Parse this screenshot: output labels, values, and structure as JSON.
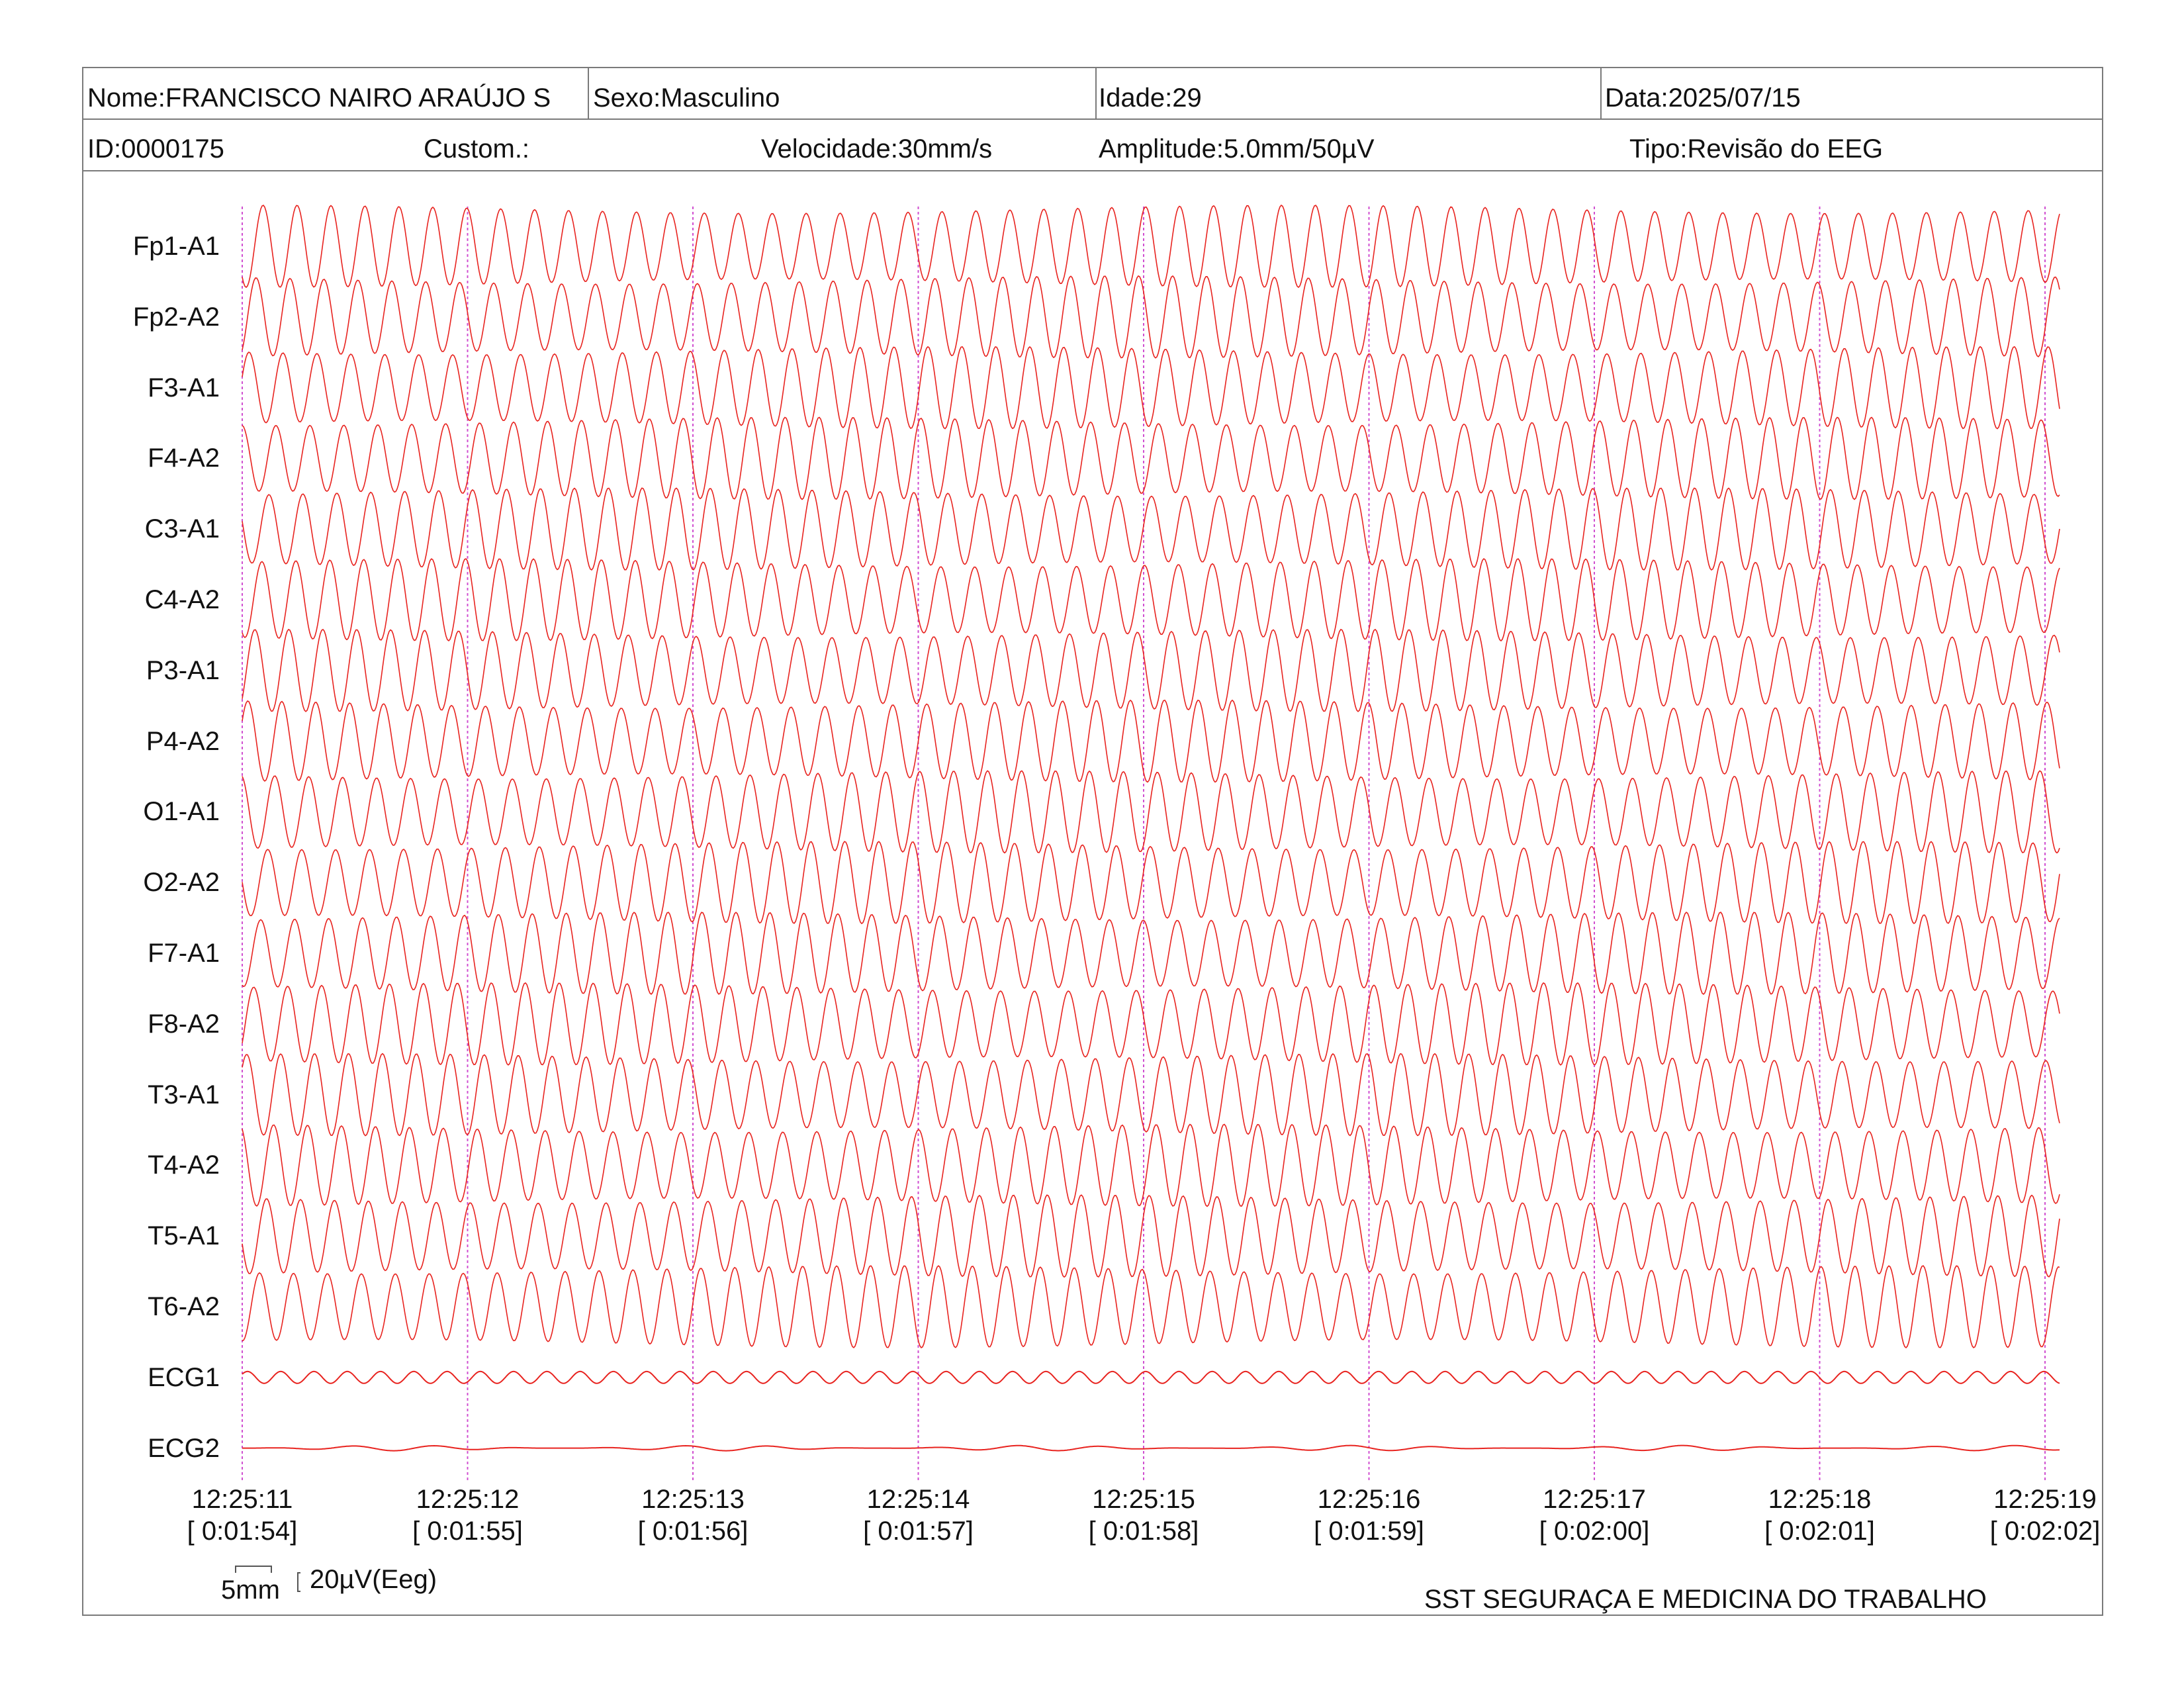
{
  "header": {
    "nome": "Nome:FRANCISCO NAIRO ARAÚJO S",
    "sexo": "Sexo:Masculino",
    "idade": "Idade:29",
    "data": "Data:2025/07/15",
    "id": "ID:0000175",
    "custom": "Custom.:",
    "velocidade": "Velocidade:30mm/s",
    "amplitude": "Amplitude:5.0mm/50µV",
    "tipo": "Tipo:Revisão do EEG"
  },
  "channels": [
    {
      "label": "Fp1-A1"
    },
    {
      "label": "Fp2-A2"
    },
    {
      "label": "F3-A1"
    },
    {
      "label": "F4-A2"
    },
    {
      "label": "C3-A1"
    },
    {
      "label": "C4-A2"
    },
    {
      "label": "P3-A1"
    },
    {
      "label": "P4-A2"
    },
    {
      "label": "O1-A1"
    },
    {
      "label": "O2-A2"
    },
    {
      "label": "F7-A1"
    },
    {
      "label": "F8-A2"
    },
    {
      "label": "T3-A1"
    },
    {
      "label": "T4-A2"
    },
    {
      "label": "T5-A1"
    },
    {
      "label": "T6-A2"
    },
    {
      "label": "ECG1"
    },
    {
      "label": "ECG2"
    }
  ],
  "time_axis": [
    {
      "clock": "12:25:11",
      "elapsed": "[ 0:01:54]"
    },
    {
      "clock": "12:25:12",
      "elapsed": "[ 0:01:55]"
    },
    {
      "clock": "12:25:13",
      "elapsed": "[ 0:01:56]"
    },
    {
      "clock": "12:25:14",
      "elapsed": "[ 0:01:57]"
    },
    {
      "clock": "12:25:15",
      "elapsed": "[ 0:01:58]"
    },
    {
      "clock": "12:25:16",
      "elapsed": "[ 0:01:59]"
    },
    {
      "clock": "12:25:17",
      "elapsed": "[ 0:02:00]"
    },
    {
      "clock": "12:25:18",
      "elapsed": "[ 0:02:01]"
    },
    {
      "clock": "12:25:19",
      "elapsed": "[ 0:02:02]"
    }
  ],
  "scale": {
    "time_scale": "5mm",
    "amp_scale": "20µV(Eeg)"
  },
  "footer": {
    "clinic": "SST SEGURAÇA E MEDICINA DO TRABALHO"
  },
  "colors": {
    "trace": "#e8231f",
    "second_marker": "#d04fd0",
    "border": "#7a7a7a"
  }
}
